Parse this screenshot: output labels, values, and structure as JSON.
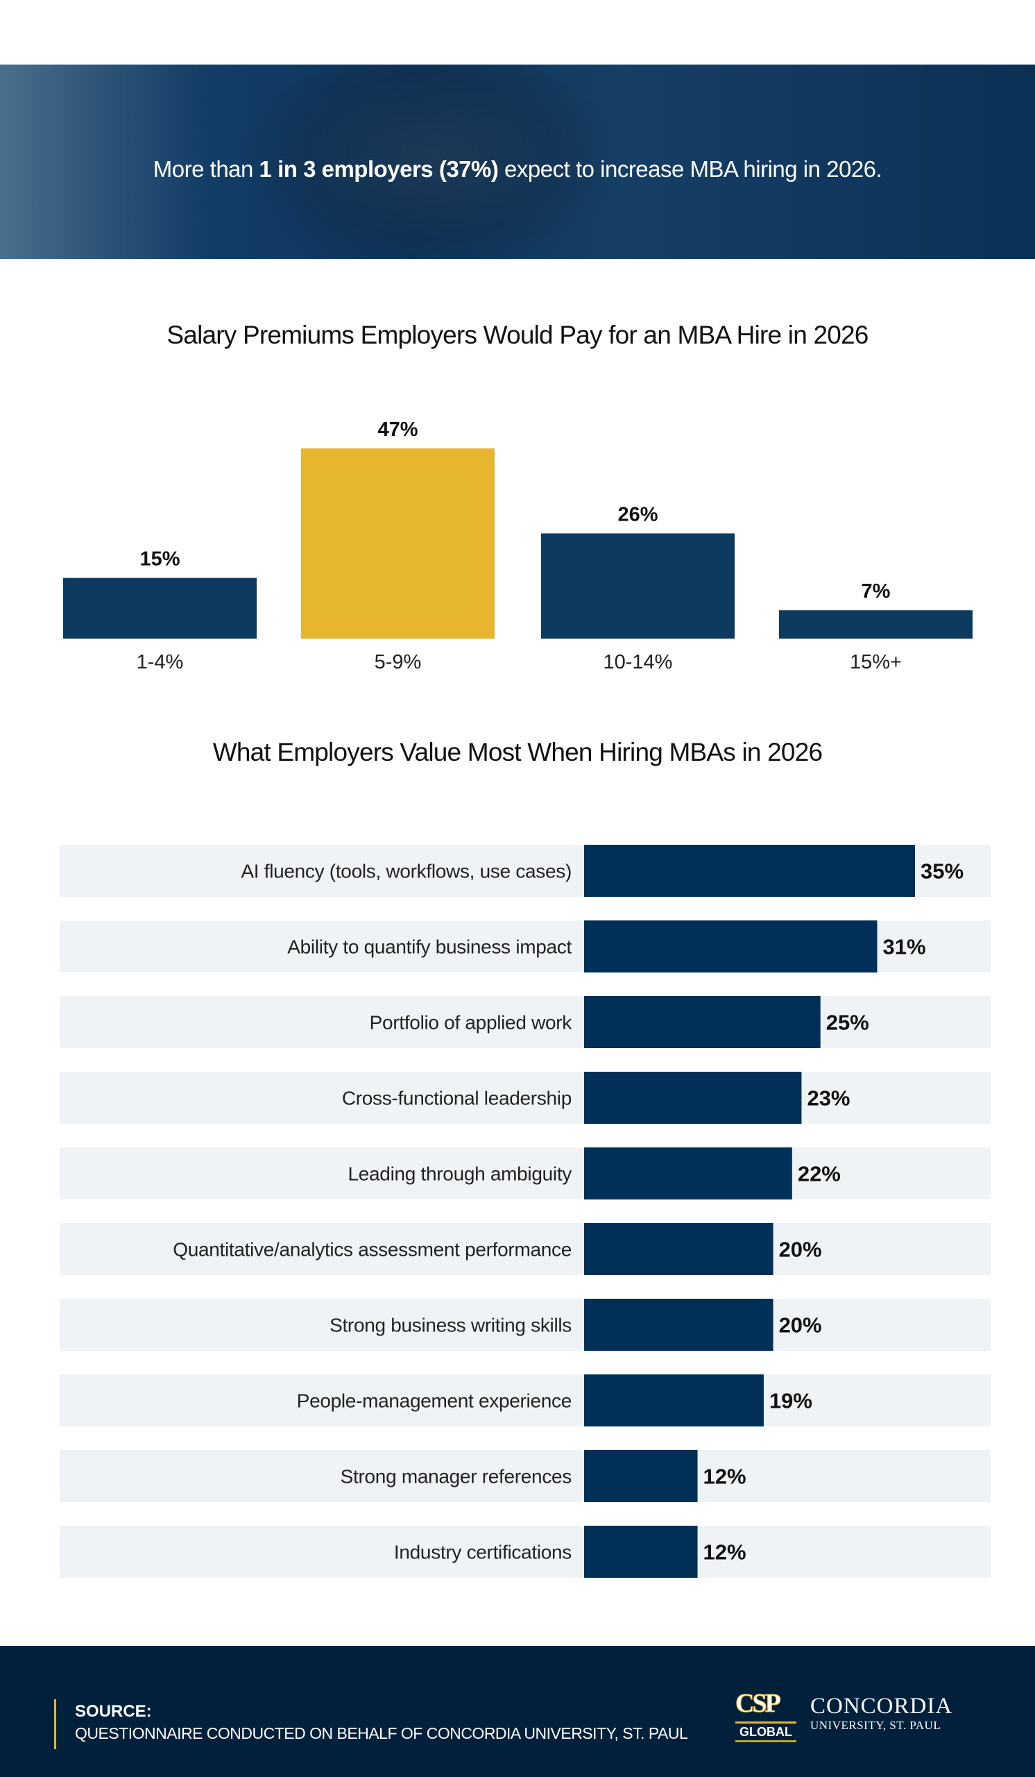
{
  "banner": {
    "prefix": "More than ",
    "bold": "1 in 3 employers (37%)",
    "suffix": " expect to increase MBA hiring in 2026."
  },
  "chart_data": [
    {
      "type": "bar",
      "title": "Salary Premiums Employers Would Pay for an MBA Hire in 2026",
      "categories": [
        "1-4%",
        "5-9%",
        "10-14%",
        "15%+"
      ],
      "values": [
        15,
        47,
        26,
        7
      ],
      "data_labels": [
        "15%",
        "47%",
        "26%",
        "7%"
      ],
      "ylim": [
        0,
        47
      ],
      "highlight_index": 1,
      "colors": {
        "default": "#0d3a5f",
        "highlight": "#e5b62e"
      },
      "grid": false
    },
    {
      "type": "bar",
      "orientation": "horizontal",
      "title": "What Employers Value Most When Hiring MBAs in 2026",
      "categories": [
        "AI fluency (tools, workflows, use cases)",
        "Ability to quantify business impact",
        "Portfolio of applied work",
        "Cross-functional leadership",
        "Leading through ambiguity",
        "Quantitative/analytics assessment performance",
        "Strong business writing skills",
        "People-management experience",
        "Strong manager references",
        "Industry certifications"
      ],
      "values": [
        35,
        31,
        25,
        23,
        22,
        20,
        20,
        19,
        12,
        12
      ],
      "data_labels": [
        "35%",
        "31%",
        "25%",
        "23%",
        "22%",
        "20%",
        "20%",
        "19%",
        "12%",
        "12%"
      ],
      "xlim": [
        0,
        35
      ],
      "colors": {
        "bar": "#003057",
        "row_background": "#eff3f6"
      },
      "grid": false
    }
  ],
  "footer": {
    "source_label": "SOURCE:",
    "source_text": "QUESTIONNAIRE CONDUCTED ON BEHALF OF CONCORDIA UNIVERSITY, ST. PAUL",
    "logo": {
      "mark": "CSP",
      "sub": "GLOBAL",
      "name": "CONCORDIA",
      "tagline": "UNIVERSITY, ST. PAUL"
    }
  }
}
